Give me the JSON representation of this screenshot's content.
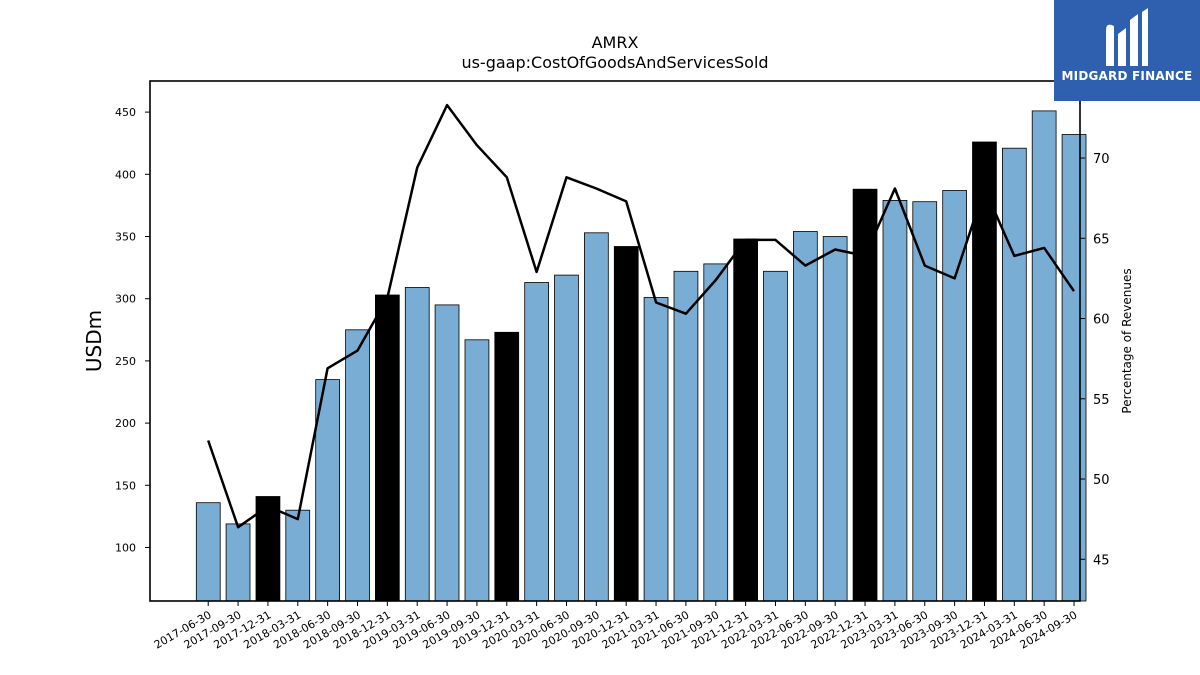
{
  "brand": {
    "name": "MIDGARD FINANCE",
    "logo_icon": "midgard-logo-icon",
    "color": "#2f5faf"
  },
  "chart_data": {
    "type": "bar",
    "title": "AMRX",
    "subtitle": "us-gaap:CostOfGoodsAndServicesSold",
    "ylabel": "USDm",
    "y2label": "Percentage of Revenues",
    "ylim": [
      57,
      475
    ],
    "y2lim": [
      42.4,
      74.8
    ],
    "yticks": [
      100,
      150,
      200,
      250,
      300,
      350,
      400,
      450
    ],
    "y2ticks": [
      45,
      50,
      55,
      60,
      65,
      70
    ],
    "colors": {
      "quarter": "#7aadd3",
      "year_end": "#000000",
      "line": "#000000"
    },
    "categories": [
      "2017-06-30",
      "2017-09-30",
      "2017-12-31",
      "2018-03-31",
      "2018-06-30",
      "2018-09-30",
      "2018-12-31",
      "2019-03-31",
      "2019-06-30",
      "2019-09-30",
      "2019-12-31",
      "2020-03-31",
      "2020-06-30",
      "2020-09-30",
      "2020-12-31",
      "2021-03-31",
      "2021-06-30",
      "2021-09-30",
      "2021-12-31",
      "2022-03-31",
      "2022-06-30",
      "2022-09-30",
      "2022-12-31",
      "2023-03-31",
      "2023-06-30",
      "2023-09-30",
      "2023-12-31",
      "2024-03-31",
      "2024-06-30",
      "2024-09-30"
    ],
    "series": [
      {
        "type": "bar",
        "axis": "left",
        "values": [
          136,
          119,
          141,
          130,
          235,
          275,
          303,
          309,
          295,
          267,
          273,
          313,
          319,
          353,
          342,
          301,
          322,
          328,
          348,
          322,
          354,
          350,
          388,
          379,
          378,
          387,
          426,
          421,
          451,
          432
        ],
        "highlight": [
          false,
          false,
          true,
          false,
          false,
          false,
          true,
          false,
          false,
          false,
          true,
          false,
          false,
          false,
          true,
          false,
          false,
          false,
          true,
          false,
          false,
          false,
          true,
          false,
          false,
          false,
          true,
          false,
          false,
          false
        ]
      },
      {
        "type": "line",
        "axis": "right",
        "values": [
          52.4,
          47.0,
          48.3,
          47.5,
          56.9,
          58.0,
          61.3,
          69.4,
          73.3,
          70.8,
          68.8,
          62.9,
          68.8,
          68.1,
          67.3,
          61.0,
          60.3,
          62.4,
          64.9,
          64.9,
          63.3,
          64.3,
          63.9,
          68.1,
          63.3,
          62.5,
          68.1,
          63.9,
          64.4,
          61.7
        ]
      }
    ]
  }
}
